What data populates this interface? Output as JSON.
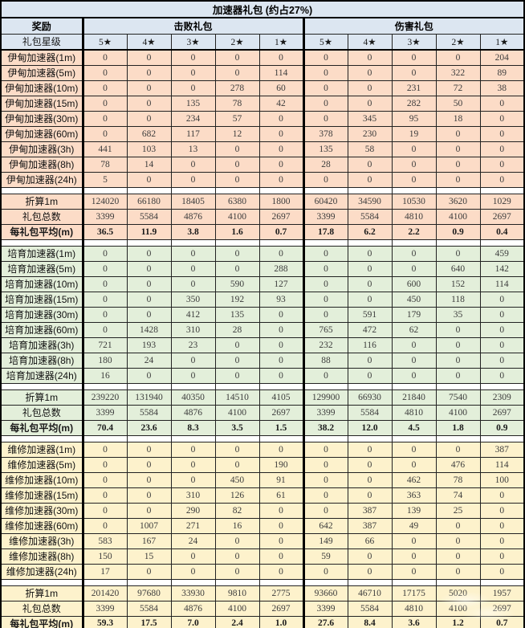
{
  "title": "加速器礼包 (约占27%)",
  "header": {
    "reward": "奖励",
    "groups": [
      "击败礼包",
      "伤害礼包"
    ],
    "star_row_label": "礼包星级",
    "stars": [
      "5★",
      "4★",
      "3★",
      "2★",
      "1★"
    ]
  },
  "colors": {
    "header_blue": "#dce6f1",
    "section_colors": [
      "#fcdcc7",
      "#e3efda",
      "#fdf2cc"
    ],
    "grid_line": "#222222",
    "thick_line": "#000000"
  },
  "sections": [
    {
      "name": "伊甸加速器",
      "rows": [
        {
          "label": "伊甸加速器(1m)",
          "values": [
            0,
            0,
            0,
            0,
            0,
            0,
            0,
            0,
            0,
            204
          ]
        },
        {
          "label": "伊甸加速器(5m)",
          "values": [
            0,
            0,
            0,
            0,
            114,
            0,
            0,
            0,
            322,
            89
          ]
        },
        {
          "label": "伊甸加速器(10m)",
          "values": [
            0,
            0,
            0,
            278,
            60,
            0,
            0,
            231,
            72,
            38
          ]
        },
        {
          "label": "伊甸加速器(15m)",
          "values": [
            0,
            0,
            135,
            78,
            42,
            0,
            0,
            282,
            50,
            0
          ]
        },
        {
          "label": "伊甸加速器(30m)",
          "values": [
            0,
            0,
            234,
            57,
            0,
            0,
            345,
            95,
            18,
            0
          ]
        },
        {
          "label": "伊甸加速器(60m)",
          "values": [
            0,
            682,
            117,
            12,
            0,
            378,
            230,
            19,
            0,
            0
          ]
        },
        {
          "label": "伊甸加速器(3h)",
          "values": [
            441,
            103,
            13,
            0,
            0,
            135,
            58,
            0,
            0,
            0
          ]
        },
        {
          "label": "伊甸加速器(8h)",
          "values": [
            78,
            14,
            0,
            0,
            0,
            28,
            0,
            0,
            0,
            0
          ]
        },
        {
          "label": "伊甸加速器(24h)",
          "values": [
            5,
            0,
            0,
            0,
            0,
            0,
            0,
            0,
            0,
            0
          ]
        }
      ],
      "summary": [
        {
          "label": "折算1m",
          "bold": false,
          "values": [
            124020,
            66180,
            18405,
            6380,
            1800,
            60420,
            34590,
            10530,
            3620,
            1029
          ]
        },
        {
          "label": "礼包总数",
          "bold": false,
          "values": [
            3399,
            5584,
            4876,
            4100,
            2697,
            3399,
            5584,
            4810,
            4100,
            2697
          ]
        },
        {
          "label": "每礼包平均(m)",
          "bold": true,
          "values": [
            "36.5",
            "11.9",
            "3.8",
            "1.6",
            "0.7",
            "17.8",
            "6.2",
            "2.2",
            "0.9",
            "0.4"
          ]
        }
      ]
    },
    {
      "name": "培育加速器",
      "rows": [
        {
          "label": "培育加速器(1m)",
          "values": [
            0,
            0,
            0,
            0,
            0,
            0,
            0,
            0,
            0,
            459
          ]
        },
        {
          "label": "培育加速器(5m)",
          "values": [
            0,
            0,
            0,
            0,
            288,
            0,
            0,
            0,
            640,
            142
          ]
        },
        {
          "label": "培育加速器(10m)",
          "values": [
            0,
            0,
            0,
            590,
            127,
            0,
            0,
            600,
            152,
            114
          ]
        },
        {
          "label": "培育加速器(15m)",
          "values": [
            0,
            0,
            350,
            192,
            93,
            0,
            0,
            450,
            118,
            0
          ]
        },
        {
          "label": "培育加速器(30m)",
          "values": [
            0,
            0,
            412,
            135,
            0,
            0,
            591,
            179,
            35,
            0
          ]
        },
        {
          "label": "培育加速器(60m)",
          "values": [
            0,
            1428,
            310,
            28,
            0,
            765,
            472,
            62,
            0,
            0
          ]
        },
        {
          "label": "培育加速器(3h)",
          "values": [
            721,
            193,
            23,
            0,
            0,
            232,
            116,
            0,
            0,
            0
          ]
        },
        {
          "label": "培育加速器(8h)",
          "values": [
            180,
            24,
            0,
            0,
            0,
            88,
            0,
            0,
            0,
            0
          ]
        },
        {
          "label": "培育加速器(24h)",
          "values": [
            16,
            0,
            0,
            0,
            0,
            0,
            0,
            0,
            0,
            0
          ]
        }
      ],
      "summary": [
        {
          "label": "折算1m",
          "bold": false,
          "values": [
            239220,
            131940,
            40350,
            14510,
            4105,
            129900,
            66930,
            21840,
            7540,
            2309
          ]
        },
        {
          "label": "礼包总数",
          "bold": false,
          "values": [
            3399,
            5584,
            4876,
            4100,
            2697,
            3399,
            5584,
            4810,
            4100,
            2697
          ]
        },
        {
          "label": "每礼包平均(m)",
          "bold": true,
          "values": [
            "70.4",
            "23.6",
            "8.3",
            "3.5",
            "1.5",
            "38.2",
            "12.0",
            "4.5",
            "1.8",
            "0.9"
          ]
        }
      ]
    },
    {
      "name": "维修加速器",
      "rows": [
        {
          "label": "维修加速器(1m)",
          "values": [
            0,
            0,
            0,
            0,
            0,
            0,
            0,
            0,
            0,
            387
          ]
        },
        {
          "label": "维修加速器(5m)",
          "values": [
            0,
            0,
            0,
            0,
            190,
            0,
            0,
            0,
            476,
            114
          ]
        },
        {
          "label": "维修加速器(10m)",
          "values": [
            0,
            0,
            0,
            450,
            91,
            0,
            0,
            462,
            78,
            100
          ]
        },
        {
          "label": "维修加速器(15m)",
          "values": [
            0,
            0,
            310,
            126,
            61,
            0,
            0,
            363,
            74,
            0
          ]
        },
        {
          "label": "维修加速器(30m)",
          "values": [
            0,
            0,
            290,
            82,
            0,
            0,
            387,
            139,
            25,
            0
          ]
        },
        {
          "label": "维修加速器(60m)",
          "values": [
            0,
            1007,
            271,
            16,
            0,
            642,
            387,
            49,
            0,
            0
          ]
        },
        {
          "label": "维修加速器(3h)",
          "values": [
            583,
            167,
            24,
            0,
            0,
            149,
            66,
            0,
            0,
            0
          ]
        },
        {
          "label": "维修加速器(8h)",
          "values": [
            150,
            15,
            0,
            0,
            0,
            59,
            0,
            0,
            0,
            0
          ]
        },
        {
          "label": "维修加速器(24h)",
          "values": [
            17,
            0,
            0,
            0,
            0,
            0,
            0,
            0,
            0,
            0
          ]
        }
      ],
      "summary": [
        {
          "label": "折算1m",
          "bold": false,
          "values": [
            201420,
            97680,
            33930,
            9810,
            2775,
            93660,
            46710,
            17175,
            5020,
            1957
          ]
        },
        {
          "label": "礼包总数",
          "bold": false,
          "values": [
            3399,
            5584,
            4876,
            4100,
            2697,
            3399,
            5584,
            4810,
            4100,
            2697
          ]
        },
        {
          "label": "每礼包平均(m)",
          "bold": true,
          "values": [
            "59.3",
            "17.5",
            "7.0",
            "2.4",
            "1.0",
            "27.6",
            "8.4",
            "3.6",
            "1.2",
            "0.7"
          ]
        }
      ]
    }
  ]
}
